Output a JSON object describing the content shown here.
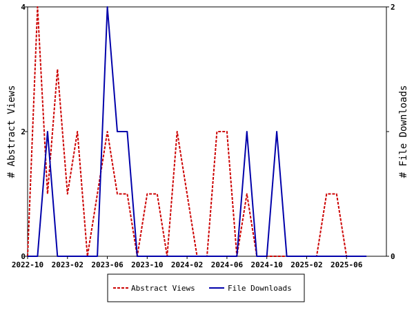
{
  "chart_data": {
    "type": "line",
    "x_tick_labels": [
      "2022-10",
      "2023-02",
      "2023-06",
      "2023-10",
      "2024-02",
      "2024-06",
      "2024-10",
      "2025-02",
      "2025-06"
    ],
    "x_tick_months": [
      0,
      4,
      8,
      12,
      16,
      20,
      24,
      28,
      32
    ],
    "x_range_months": [
      0,
      36
    ],
    "y_left": {
      "label": "# Abstract Views",
      "range": [
        0,
        4
      ],
      "ticks": [
        "0",
        "2",
        "4"
      ]
    },
    "y_right": {
      "label": "# File Downloads",
      "range": [
        0,
        2
      ],
      "ticks": [
        "0",
        "1",
        "2"
      ]
    },
    "legend_position": "bottom-center",
    "grid": false,
    "series": [
      {
        "name": "Abstract Views",
        "axis": "left",
        "color": "#cc0000",
        "style": "dashed",
        "points": [
          [
            0,
            0
          ],
          [
            1,
            4
          ],
          [
            2,
            1
          ],
          [
            3,
            3
          ],
          [
            4,
            1
          ],
          [
            5,
            2
          ],
          [
            6,
            0
          ],
          [
            7,
            1
          ],
          [
            8,
            2
          ],
          [
            9,
            1
          ],
          [
            10,
            1
          ],
          [
            11,
            0
          ],
          [
            12,
            1
          ],
          [
            13,
            1
          ],
          [
            14,
            0
          ],
          [
            15,
            2
          ],
          [
            16,
            1
          ],
          [
            17,
            0
          ],
          [
            18,
            0
          ],
          [
            19,
            2
          ],
          [
            20,
            2
          ],
          [
            21,
            0
          ],
          [
            22,
            1
          ],
          [
            23,
            0
          ],
          [
            24,
            0
          ],
          [
            25,
            0
          ],
          [
            26,
            0
          ],
          [
            27,
            0
          ],
          [
            28,
            0
          ],
          [
            29,
            0
          ],
          [
            30,
            1
          ],
          [
            31,
            1
          ],
          [
            32,
            0
          ]
        ]
      },
      {
        "name": "File Downloads",
        "axis": "right",
        "color": "#0000aa",
        "style": "solid",
        "points": [
          [
            0,
            0
          ],
          [
            1,
            0
          ],
          [
            2,
            1
          ],
          [
            3,
            0
          ],
          [
            4,
            0
          ],
          [
            5,
            0
          ],
          [
            6,
            0
          ],
          [
            7,
            0
          ],
          [
            8,
            2
          ],
          [
            9,
            1
          ],
          [
            10,
            1
          ],
          [
            11,
            0
          ],
          [
            12,
            0
          ],
          [
            13,
            0
          ],
          [
            14,
            0
          ],
          [
            15,
            0
          ],
          [
            16,
            0
          ],
          [
            17,
            0
          ],
          [
            18,
            0
          ],
          [
            19,
            0
          ],
          [
            20,
            0
          ],
          [
            21,
            0
          ],
          [
            22,
            1
          ],
          [
            23,
            0
          ],
          [
            24,
            0
          ],
          [
            25,
            1
          ],
          [
            26,
            0
          ],
          [
            27,
            0
          ],
          [
            28,
            0
          ],
          [
            29,
            0
          ],
          [
            30,
            0
          ],
          [
            31,
            0
          ],
          [
            32,
            0
          ],
          [
            33,
            0
          ],
          [
            34,
            0
          ]
        ]
      }
    ]
  }
}
